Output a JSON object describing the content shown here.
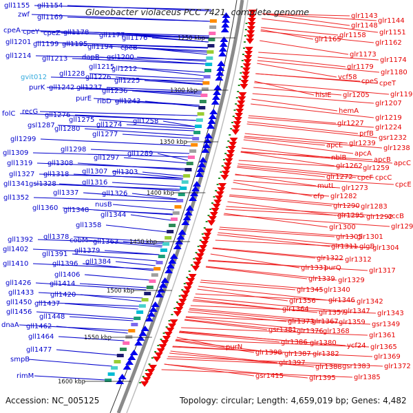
{
  "title": "Gloeobacter violaceus PCC 7421, complete genome",
  "footer": {
    "accession": "Accession: NC_005125",
    "summary": "Topology: circular; Length: 4,659,019 bp; Genes: 4,482"
  },
  "colors": {
    "left_labels": "#0000cc",
    "right_labels": "#e60000",
    "pale_label": "#33aadd",
    "backbone": "#888888"
  },
  "kbp_ticks": [
    "1250 kbp",
    "1300 kbp",
    "1350 kbp",
    "1400 kbp",
    "1450 kbp",
    "1500 kbp",
    "1550 kbp",
    "1600 kbp"
  ],
  "left_labels": [
    "gll1155",
    "gll1154",
    "zwf",
    "gll1169",
    "cpeA",
    "cpeY",
    "cpeZ",
    "gll1178",
    "gll1177",
    "gll1176",
    "gll1201",
    "gll1199",
    "gll1195",
    "gll1194",
    "cpeB",
    "gll1214",
    "gll1213",
    "dapB",
    "gsl1200",
    "gll1215",
    "gll1212",
    "gvit012",
    "gll1228",
    "gll1226",
    "gll1225",
    "purK",
    "gll1242",
    "gll1237",
    "gll1236",
    "purE",
    "ribD",
    "gll1243",
    "folC",
    "recG",
    "gll1276",
    "gll1275",
    "gll1274",
    "gsl1287",
    "gll1280",
    "gll1277",
    "gll1258",
    "gll1299",
    "gll1298",
    "gll1297",
    "gll1289",
    "gll1309",
    "gll1319",
    "gll1308",
    "gll1327",
    "gll1318",
    "gll1307",
    "gll1303",
    "gll1341",
    "gsl1328",
    "gll1316",
    "gll1326",
    "gll1337",
    "gll1352",
    "nusB",
    "gll1360",
    "gll1348",
    "gll1344",
    "gll1358",
    "gll1392",
    "gll1378",
    "cobM",
    "gll1363",
    "gll1402",
    "gll1391",
    "gll1379",
    "gll1410",
    "gll1396",
    "gll1384",
    "gll1406",
    "gll1426",
    "gll1414",
    "gll1433",
    "gll1420",
    "gll1450",
    "gll1437",
    "gll1456",
    "gll1448",
    "dnaA",
    "gll1462",
    "gll1464",
    "gll1477",
    "smpB",
    "rimM"
  ],
  "right_labels": [
    "glr1143",
    "glr1144",
    "glr1148",
    "glr1151",
    "glr1158",
    "glr1165",
    "glr1162",
    "glr1173",
    "glr1174",
    "glr1179",
    "glr1180",
    "vcf58",
    "cpeS",
    "cpeT",
    "glr1198",
    "hisIE",
    "glr1205",
    "glr1207",
    "hemA",
    "glr1219",
    "glr1227",
    "glr1224",
    "prfB",
    "gsr1232",
    "apcE",
    "glr1239",
    "glr1238",
    "apcA",
    "apcB",
    "nblB",
    "apcC",
    "glr1262",
    "glr1259",
    "glr1272",
    "cpcF",
    "cpcC",
    "glr1273",
    "cpcE",
    "mutL",
    "efp",
    "glr1282",
    "glr1290",
    "glr1283",
    "glr1295",
    "glr1292",
    "accB",
    "glr1293",
    "glr1300",
    "glr1305",
    "glr1301",
    "glr1311",
    "glgB",
    "glr1304",
    "glr1322",
    "glr1312",
    "glr1331",
    "purQ",
    "glr1317",
    "glr1339",
    "glr1329",
    "glr1345",
    "glr1340",
    "glr1356",
    "glr1346",
    "glr1342",
    "glr1364",
    "glr1357",
    "glr1347",
    "glr1343",
    "glr1373",
    "glr1367",
    "glr1359",
    "gsr1349",
    "gsr1381",
    "glr1376",
    "glr1368",
    "glr1361",
    "glr1386",
    "glr1380",
    "ycf24",
    "glr1365",
    "purN",
    "glr1398",
    "glr1387",
    "glr1382",
    "glr1369",
    "glr1397",
    "glr1388",
    "gsr1383",
    "glr1372",
    "gsr1415",
    "glr1395",
    "glr1385"
  ]
}
